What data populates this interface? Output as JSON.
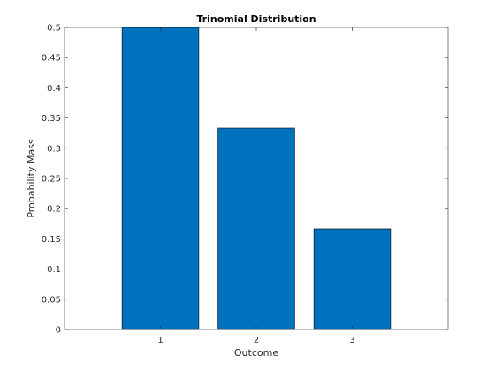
{
  "chart_data": {
    "type": "bar",
    "title": "Trinomial Distribution",
    "xlabel": "Outcome",
    "ylabel": "Probability Mass",
    "categories": [
      "1",
      "2",
      "3"
    ],
    "x": [
      1,
      2,
      3
    ],
    "values": [
      0.5,
      0.3333,
      0.1667
    ],
    "xlim": [
      0,
      4
    ],
    "ylim": [
      0,
      0.5
    ],
    "yticks": [
      0,
      0.05,
      0.1,
      0.15,
      0.2,
      0.25,
      0.3,
      0.35,
      0.4,
      0.45,
      0.5
    ],
    "ytick_labels": [
      "0",
      "0.05",
      "0.1",
      "0.15",
      "0.2",
      "0.25",
      "0.3",
      "0.35",
      "0.4",
      "0.45",
      "0.5"
    ],
    "bar_color": "#0072BD",
    "grid": false,
    "legend": false
  }
}
